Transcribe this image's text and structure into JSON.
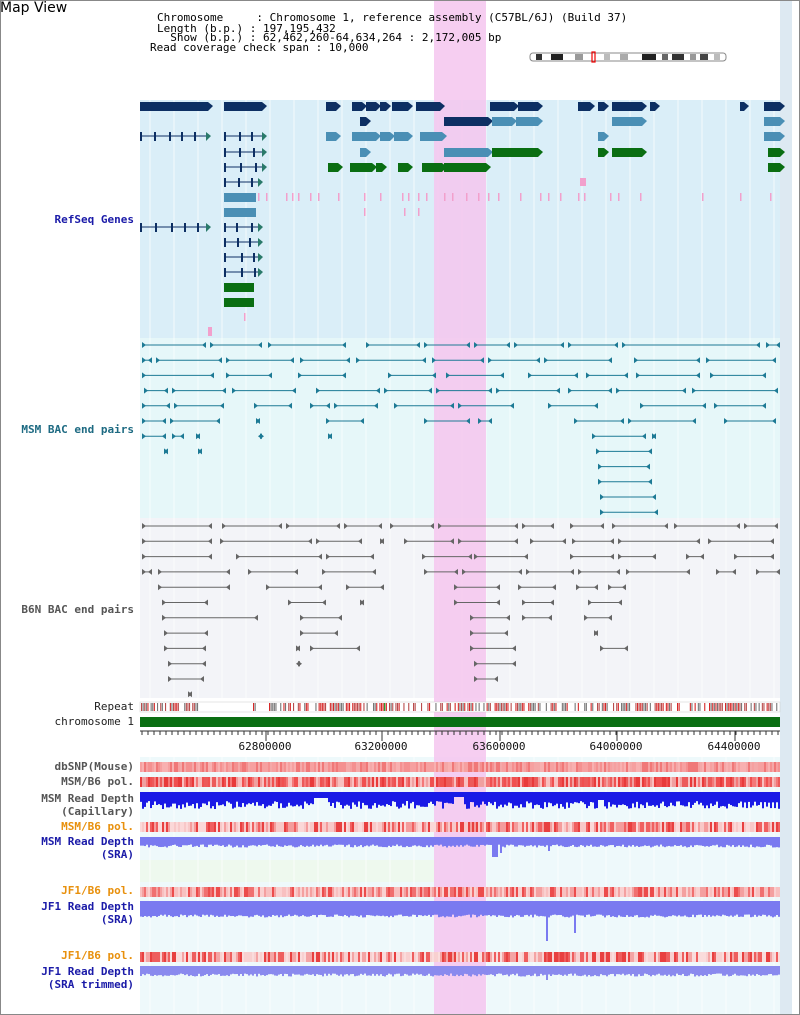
{
  "header": {
    "view_title": "Map View",
    "line1": "Chromosome     : Chromosome 1, reference assembly (C57BL/6J) (Build 37)",
    "line2": "Length (b.p.) : 197,195,432",
    "line3": "  Show (b.p.) : 62,462,260-64,634,264 : 2,172,005 bp",
    "line4": "Read coverage check span : 10,000"
  },
  "tracks": {
    "refseq": "RefSeq Genes",
    "msm_bac": "MSM BAC end pairs",
    "b6n_bac": "B6N BAC end pairs",
    "repeat": "Repeat",
    "chromosome": "chromosome 1",
    "dbsnp": "dbSNP(Mouse)",
    "msm_pol": "MSM/B6 pol.",
    "msm_depth_cap_1": "MSM Read Depth",
    "msm_depth_cap_2": "(Capillary)",
    "msm_pol_2": "MSM/B6 pol.",
    "msm_depth_sra_1": "MSM Read Depth",
    "msm_depth_sra_2": "(SRA)",
    "jf1_pol": "JF1/B6 pol.",
    "jf1_depth_sra_1": "JF1 Read Depth",
    "jf1_depth_sra_2": "(SRA)",
    "jf1_pol_2": "JF1/B6 pol.",
    "jf1_depth_trim_1": "JF1 Read Depth",
    "jf1_depth_trim_2": "(SRA trimmed)"
  },
  "ruler": {
    "ticks": [
      "62800000",
      "63200000",
      "63600000",
      "64000000",
      "64400000"
    ]
  },
  "colors": {
    "refseq_dark": "#0d2f63",
    "refseq_mid": "#4a8fb5",
    "refseq_green": "#0a6e12",
    "highlight": "#f5c6ee",
    "chromosome_bar": "#0a6e12",
    "depth_capillary": "#1a1ae6",
    "depth_sra": "#7a7af0"
  }
}
